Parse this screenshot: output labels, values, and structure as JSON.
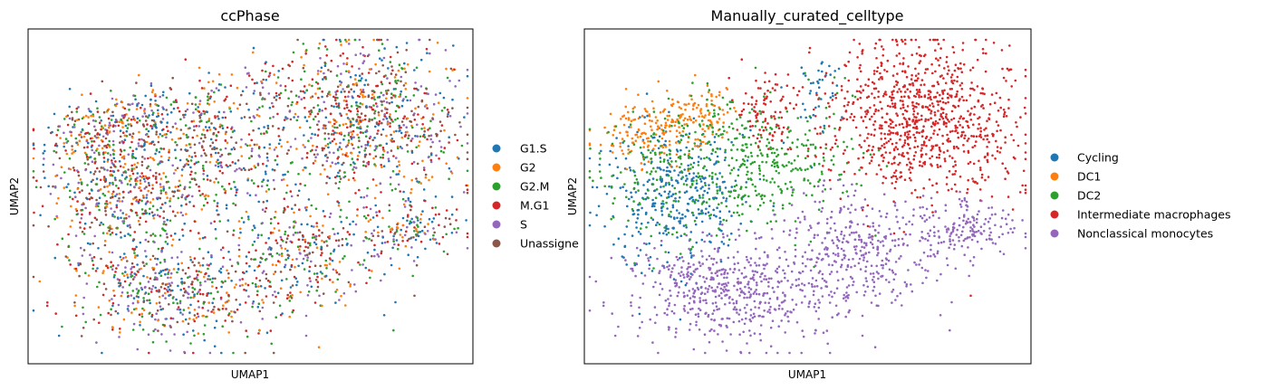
{
  "figure": {
    "panels": [
      {
        "title": "ccPhase",
        "xlabel": "UMAP1",
        "ylabel": "UMAP2",
        "legend": [
          {
            "label": "G1.S",
            "color": "#1f77b4"
          },
          {
            "label": "G2",
            "color": "#ff7f0e"
          },
          {
            "label": "G2.M",
            "color": "#2ca02c"
          },
          {
            "label": "M.G1",
            "color": "#d62728"
          },
          {
            "label": "S",
            "color": "#9467bd"
          },
          {
            "label": "Unassigne",
            "color": "#8c564b"
          }
        ]
      },
      {
        "title": "Manually_curated_celltype",
        "xlabel": "UMAP1",
        "ylabel": "UMAP2",
        "legend": [
          {
            "label": "Cycling",
            "color": "#1f77b4"
          },
          {
            "label": "DC1",
            "color": "#ff7f0e"
          },
          {
            "label": "DC2",
            "color": "#2ca02c"
          },
          {
            "label": "Intermediate macrophages",
            "color": "#d62728"
          },
          {
            "label": "Nonclassical monocytes",
            "color": "#9467bd"
          }
        ]
      }
    ]
  },
  "chart_data": [
    {
      "type": "scatter",
      "title": "ccPhase",
      "xlabel": "UMAP1",
      "ylabel": "UMAP2",
      "x_ticks": "none",
      "y_ticks": "none",
      "grid": false,
      "legend_position": "right, outside",
      "series": [
        {
          "name": "G1.S",
          "color": "#1f77b4"
        },
        {
          "name": "G2",
          "color": "#ff7f0e"
        },
        {
          "name": "G2.M",
          "color": "#2ca02c"
        },
        {
          "name": "M.G1",
          "color": "#d62728"
        },
        {
          "name": "S",
          "color": "#9467bd"
        },
        {
          "name": "Unassigne",
          "color": "#8c564b"
        }
      ]
    },
    {
      "type": "scatter",
      "title": "Manually_curated_celltype",
      "xlabel": "UMAP1",
      "ylabel": "UMAP2",
      "x_ticks": "none",
      "y_ticks": "none",
      "grid": false,
      "legend_position": "right, outside",
      "series": [
        {
          "name": "Cycling",
          "color": "#1f77b4"
        },
        {
          "name": "DC1",
          "color": "#ff7f0e"
        },
        {
          "name": "DC2",
          "color": "#2ca02c"
        },
        {
          "name": "Intermediate macrophages",
          "color": "#d62728"
        },
        {
          "name": "Nonclassical monocytes",
          "color": "#9467bd"
        }
      ]
    }
  ]
}
